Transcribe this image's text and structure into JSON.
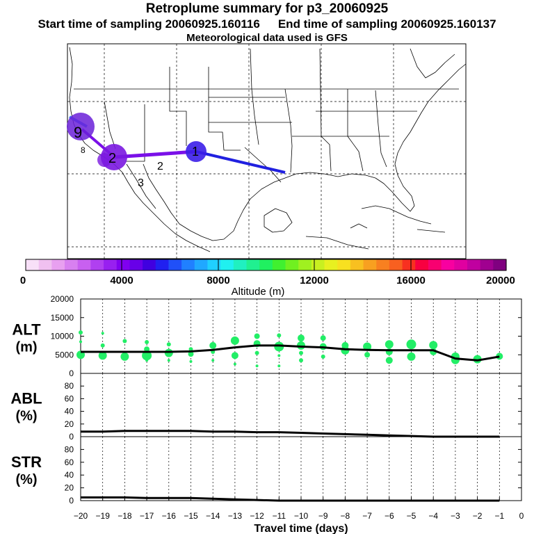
{
  "header": {
    "title": "Retroplume summary for p3_20060925",
    "start_label": "Start time of sampling 20060925.160116",
    "end_label": "End time of sampling 20060925.160137",
    "met_label": "Meteorological data used is GFS"
  },
  "map": {
    "day_labels": [
      "1",
      "2",
      "3",
      "8",
      "9"
    ],
    "path_colors": [
      "#2020e0",
      "#7a10e8",
      "#4080ff"
    ]
  },
  "colorbar": {
    "tick_labels": [
      "0",
      "4000",
      "8000",
      "12000",
      "16000",
      "20000"
    ],
    "label": "Altitude (m)",
    "colors": [
      "#f8e0f8",
      "#f0c0f0",
      "#e8a0f0",
      "#d880f0",
      "#c860f0",
      "#b040f0",
      "#9820f0",
      "#8000f0",
      "#6800e8",
      "#4000e0",
      "#2020f0",
      "#2050f8",
      "#2080ff",
      "#20a8ff",
      "#20d0ff",
      "#20f0f0",
      "#20f0c0",
      "#20f090",
      "#20f060",
      "#40f030",
      "#70f020",
      "#a0f020",
      "#c8f020",
      "#e8f020",
      "#f8e020",
      "#f8c020",
      "#f8a020",
      "#f88020",
      "#f86020",
      "#f83020",
      "#f80040",
      "#f80070",
      "#f800a0",
      "#e000a0",
      "#c000a0",
      "#a00090",
      "#800080"
    ]
  },
  "chart_data": [
    {
      "type": "line",
      "panel": "ALT",
      "ylabel": "ALT (m)",
      "ylim": [
        0,
        20000
      ],
      "yticks": [
        0,
        5000,
        10000,
        15000,
        20000
      ],
      "xlim": [
        -20,
        0
      ],
      "x": [
        -20,
        -19,
        -18,
        -17,
        -16,
        -15,
        -14,
        -13,
        -12,
        -11,
        -10,
        -9,
        -8,
        -7,
        -6,
        -5,
        -4,
        -3,
        -2,
        -1
      ],
      "values": [
        5800,
        5800,
        5800,
        5800,
        5800,
        5900,
        6300,
        7000,
        7500,
        7500,
        7200,
        7000,
        6500,
        6300,
        6200,
        6200,
        6200,
        4000,
        3500,
        4500
      ],
      "dots_color": "#22ee66",
      "dots": [
        [
          -20,
          11000,
          3
        ],
        [
          -20,
          8500,
          2
        ],
        [
          -20,
          5000,
          6
        ],
        [
          -19,
          10800,
          2
        ],
        [
          -19,
          7500,
          3
        ],
        [
          -19,
          4800,
          6
        ],
        [
          -18,
          8700,
          3
        ],
        [
          -18,
          4500,
          6
        ],
        [
          -17,
          8400,
          3
        ],
        [
          -17,
          6500,
          4
        ],
        [
          -17,
          4800,
          7
        ],
        [
          -17,
          3500,
          2
        ],
        [
          -16,
          7800,
          3
        ],
        [
          -16,
          5500,
          6
        ],
        [
          -16,
          3500,
          2
        ],
        [
          -15,
          6500,
          3
        ],
        [
          -15,
          5200,
          4
        ],
        [
          -15,
          3200,
          2
        ],
        [
          -14,
          7500,
          5
        ],
        [
          -14,
          5800,
          3
        ],
        [
          -14,
          3500,
          2
        ],
        [
          -13,
          8800,
          6
        ],
        [
          -13,
          4800,
          5
        ],
        [
          -13,
          2500,
          2
        ],
        [
          -12,
          10000,
          4
        ],
        [
          -12,
          8000,
          5
        ],
        [
          -12,
          5500,
          3
        ],
        [
          -12,
          2000,
          2
        ],
        [
          -11,
          10200,
          3
        ],
        [
          -11,
          7200,
          7
        ],
        [
          -11,
          4800,
          2
        ],
        [
          -11,
          2000,
          2
        ],
        [
          -10,
          9500,
          5
        ],
        [
          -10,
          7500,
          6
        ],
        [
          -10,
          5500,
          3
        ],
        [
          -10,
          3500,
          3
        ],
        [
          -9,
          9500,
          4
        ],
        [
          -9,
          7200,
          5
        ],
        [
          -9,
          4500,
          3
        ],
        [
          -8,
          7500,
          5
        ],
        [
          -8,
          6200,
          6
        ],
        [
          -7,
          7200,
          6
        ],
        [
          -7,
          5000,
          4
        ],
        [
          -6,
          7800,
          6
        ],
        [
          -6,
          5800,
          5
        ],
        [
          -6,
          3500,
          5
        ],
        [
          -5,
          7800,
          7
        ],
        [
          -5,
          4500,
          6
        ],
        [
          -4,
          7600,
          6
        ],
        [
          -4,
          5800,
          5
        ],
        [
          -3,
          4500,
          6
        ],
        [
          -3,
          3600,
          6
        ],
        [
          -2,
          3800,
          6
        ],
        [
          -1,
          4600,
          5
        ]
      ]
    },
    {
      "type": "line",
      "panel": "ABL",
      "ylabel": "ABL (%)",
      "ylim": [
        0,
        100
      ],
      "yticks": [
        0,
        20,
        40,
        60,
        80
      ],
      "xlim": [
        -20,
        0
      ],
      "x": [
        -20,
        -19,
        -18,
        -17,
        -16,
        -15,
        -14,
        -13,
        -12,
        -11,
        -10,
        -9,
        -8,
        -7,
        -6,
        -5,
        -4,
        -3,
        -2,
        -1
      ],
      "values": [
        8,
        8,
        9,
        9,
        9,
        9,
        8,
        8,
        7,
        7,
        6,
        5,
        4,
        3,
        2,
        1,
        0,
        0,
        0,
        0
      ]
    },
    {
      "type": "line",
      "panel": "STR",
      "ylabel": "STR (%)",
      "ylim": [
        0,
        100
      ],
      "yticks": [
        0,
        20,
        40,
        60,
        80
      ],
      "xlim": [
        -20,
        0
      ],
      "xlabel": "Travel time (days)",
      "xticks": [
        -20,
        -19,
        -18,
        -17,
        -16,
        -15,
        -14,
        -13,
        -12,
        -11,
        -10,
        -9,
        -8,
        -7,
        -6,
        -5,
        -4,
        -3,
        -2,
        -1,
        0
      ],
      "xtick_labels": [
        "−20",
        "−19",
        "−18",
        "−17",
        "−16",
        "−15",
        "−14",
        "−13",
        "−12",
        "−11",
        "−10",
        "−9",
        "−8",
        "−7",
        "−6",
        "−5",
        "−4",
        "−3",
        "−2",
        "−1",
        "0"
      ],
      "x": [
        -20,
        -19,
        -18,
        -17,
        -16,
        -15,
        -14,
        -13,
        -12,
        -11,
        -10,
        -9,
        -8,
        -7,
        -6,
        -5,
        -4,
        -3,
        -2,
        -1
      ],
      "values": [
        5,
        5,
        5,
        4,
        4,
        4,
        3,
        2,
        1,
        0,
        0,
        0,
        0,
        0,
        0,
        0,
        0,
        0,
        0,
        0
      ]
    }
  ]
}
